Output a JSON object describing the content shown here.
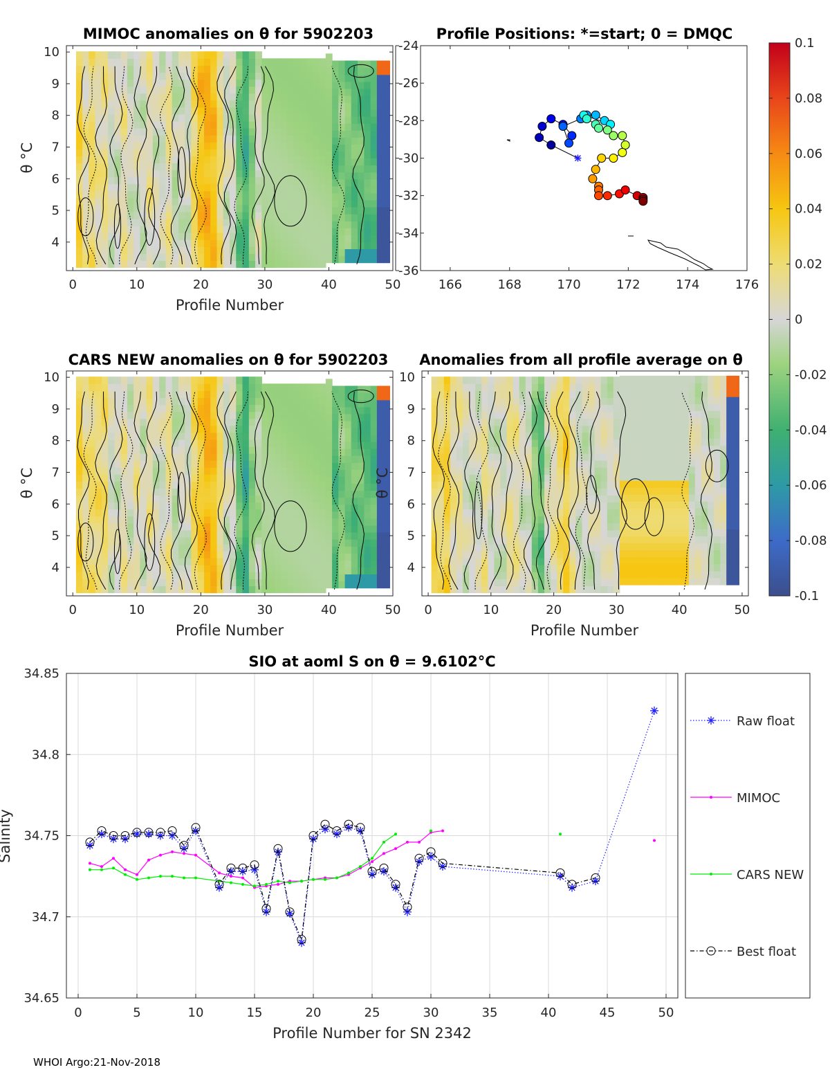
{
  "footer": "WHOI Argo:21-Nov-2018",
  "colorbar": {
    "ticks": [
      "0.1",
      "0.08",
      "0.06",
      "0.04",
      "0.02",
      "0",
      "-0.02",
      "-0.04",
      "-0.06",
      "-0.08",
      "-0.1"
    ],
    "range": [
      -0.1,
      0.1
    ]
  },
  "colors": {
    "raw": "#1f1fff",
    "mimoc": "#ff00ff",
    "cars": "#00ee00",
    "best": "#000000"
  },
  "chart_data": [
    {
      "type": "heatmap",
      "title": "MIMOC anomalies on θ  for 5902203",
      "xlabel": "Profile Number",
      "ylabel": "θ °C",
      "xticks": [
        "0",
        "10",
        "20",
        "30",
        "40",
        "50"
      ],
      "yticks": [
        "4",
        "5",
        "6",
        "7",
        "8",
        "9",
        "10"
      ],
      "xlim": [
        -1,
        50
      ],
      "ylim": [
        3.1,
        10.2
      ]
    },
    {
      "type": "scatter",
      "title": "Profile Positions: *=start; 0 = DMQC",
      "xticks": [
        "166",
        "168",
        "170",
        "172",
        "174",
        "176"
      ],
      "yticks": [
        "-24",
        "-26",
        "-28",
        "-30",
        "-32",
        "-34",
        "-36"
      ],
      "xlim": [
        165,
        176
      ],
      "ylim": [
        -36,
        -24
      ],
      "lon": [
        170.3,
        169.4,
        169.0,
        169.1,
        169.4,
        169.8,
        170.1,
        170.0,
        169.8,
        170.4,
        170.6,
        170.9,
        171.2,
        171.4,
        170.5,
        170.6,
        170.9,
        171.0,
        171.3,
        171.5,
        171.8,
        171.9,
        171.8,
        171.5,
        171.1,
        170.9,
        170.8,
        171.0,
        171.0,
        171.0,
        171.3,
        171.7,
        171.9,
        172.3,
        172.5,
        172.5,
        172.5
      ],
      "lat": [
        -30.0,
        -29.3,
        -28.9,
        -28.3,
        -27.9,
        -28.2,
        -28.8,
        -29.2,
        -28.3,
        -27.9,
        -27.7,
        -27.7,
        -28.0,
        -28.2,
        -27.7,
        -27.9,
        -28.2,
        -28.4,
        -28.5,
        -28.8,
        -28.8,
        -29.3,
        -29.7,
        -30.0,
        -30.0,
        -30.6,
        -31.1,
        -31.5,
        -31.7,
        -32.0,
        -32.0,
        -31.9,
        -31.7,
        -32.0,
        -32.1,
        -32.2,
        -32.3
      ]
    },
    {
      "type": "heatmap",
      "title": "CARS NEW anomalies on θ for 5902203",
      "xlabel": "Profile Number",
      "ylabel": "θ °C",
      "xticks": [
        "0",
        "10",
        "20",
        "30",
        "40",
        "50"
      ],
      "yticks": [
        "4",
        "5",
        "6",
        "7",
        "8",
        "9",
        "10"
      ],
      "xlim": [
        -1,
        50
      ],
      "ylim": [
        3.1,
        10.2
      ]
    },
    {
      "type": "heatmap",
      "title": "Anomalies from all profile average on θ",
      "xlabel": "Profile Number",
      "ylabel": "θ °C",
      "xticks": [
        "0",
        "10",
        "20",
        "30",
        "40",
        "50"
      ],
      "yticks": [
        "4",
        "5",
        "6",
        "7",
        "8",
        "9",
        "10"
      ],
      "xlim": [
        -1,
        51
      ],
      "ylim": [
        3.1,
        10.2
      ]
    },
    {
      "type": "line",
      "title": "SIO at aoml S on θ = 9.6102°C",
      "xlabel": "Profile Number for SN 2342",
      "ylabel": "Salinity",
      "xlim": [
        -1,
        51
      ],
      "ylim": [
        34.65,
        34.85
      ],
      "xticks": [
        "0",
        "5",
        "10",
        "15",
        "20",
        "25",
        "30",
        "35",
        "40",
        "45",
        "50"
      ],
      "yticks": [
        "34.65",
        "34.7",
        "34.75",
        "34.8",
        "34.85"
      ],
      "series": [
        {
          "name": "Raw float",
          "x": [
            1,
            2,
            3,
            4,
            5,
            6,
            7,
            8,
            9,
            10,
            12,
            13,
            14,
            15,
            16,
            17,
            18,
            19,
            20,
            21,
            22,
            23,
            24,
            25,
            26,
            27,
            28,
            29,
            30,
            31,
            41,
            42,
            44,
            49
          ],
          "values": [
            34.744,
            34.751,
            34.748,
            34.748,
            34.751,
            34.751,
            34.75,
            34.75,
            34.742,
            34.753,
            34.718,
            34.728,
            34.728,
            34.729,
            34.703,
            34.74,
            34.702,
            34.684,
            34.748,
            34.754,
            34.751,
            34.755,
            34.753,
            34.726,
            34.728,
            34.718,
            34.703,
            34.734,
            34.737,
            34.731,
            34.725,
            34.718,
            34.722,
            34.827
          ]
        },
        {
          "name": "MIMOC",
          "x": [
            1,
            2,
            3,
            4,
            5,
            6,
            7,
            8,
            9,
            10,
            12,
            13,
            14,
            15,
            16,
            17,
            18,
            19,
            20,
            21,
            22,
            23,
            24,
            25,
            26,
            27,
            28,
            29,
            30,
            31,
            41,
            42,
            44,
            49
          ],
          "values": [
            34.733,
            34.731,
            34.736,
            34.729,
            34.726,
            34.735,
            34.738,
            34.74,
            34.739,
            34.738,
            34.727,
            34.725,
            34.724,
            34.718,
            34.719,
            34.72,
            34.722,
            34.722,
            34.723,
            34.724,
            34.724,
            34.726,
            34.73,
            34.734,
            34.739,
            34.742,
            34.746,
            34.746,
            34.752,
            34.753,
            null,
            null,
            null,
            34.747
          ]
        },
        {
          "name": "CARS NEW",
          "x": [
            1,
            2,
            3,
            4,
            5,
            6,
            7,
            8,
            9,
            10,
            12,
            13,
            14,
            15,
            16,
            17,
            18,
            19,
            20,
            21,
            22,
            23,
            24,
            25,
            26,
            27,
            28,
            29,
            30,
            31,
            41,
            42,
            44,
            49
          ],
          "values": [
            34.729,
            34.729,
            34.73,
            34.726,
            34.723,
            34.724,
            34.725,
            34.725,
            34.724,
            34.724,
            34.722,
            34.721,
            34.72,
            34.719,
            34.72,
            34.722,
            34.721,
            34.722,
            34.723,
            34.723,
            34.724,
            34.727,
            34.731,
            34.736,
            34.746,
            34.751,
            null,
            null,
            34.753,
            null,
            34.751,
            null,
            null,
            null
          ]
        },
        {
          "name": "Best float",
          "x": [
            1,
            2,
            3,
            4,
            5,
            6,
            7,
            8,
            9,
            10,
            12,
            13,
            14,
            15,
            16,
            17,
            18,
            19,
            20,
            21,
            22,
            23,
            24,
            25,
            26,
            27,
            28,
            29,
            30,
            31,
            41,
            42,
            44
          ],
          "values": [
            34.746,
            34.753,
            34.75,
            34.75,
            34.752,
            34.752,
            34.752,
            34.753,
            34.744,
            34.755,
            34.72,
            34.73,
            34.73,
            34.732,
            34.705,
            34.742,
            34.703,
            34.686,
            34.75,
            34.757,
            34.753,
            34.757,
            34.755,
            34.728,
            34.73,
            34.72,
            34.706,
            34.736,
            34.74,
            34.733,
            34.727,
            34.72,
            34.724
          ]
        }
      ]
    }
  ]
}
